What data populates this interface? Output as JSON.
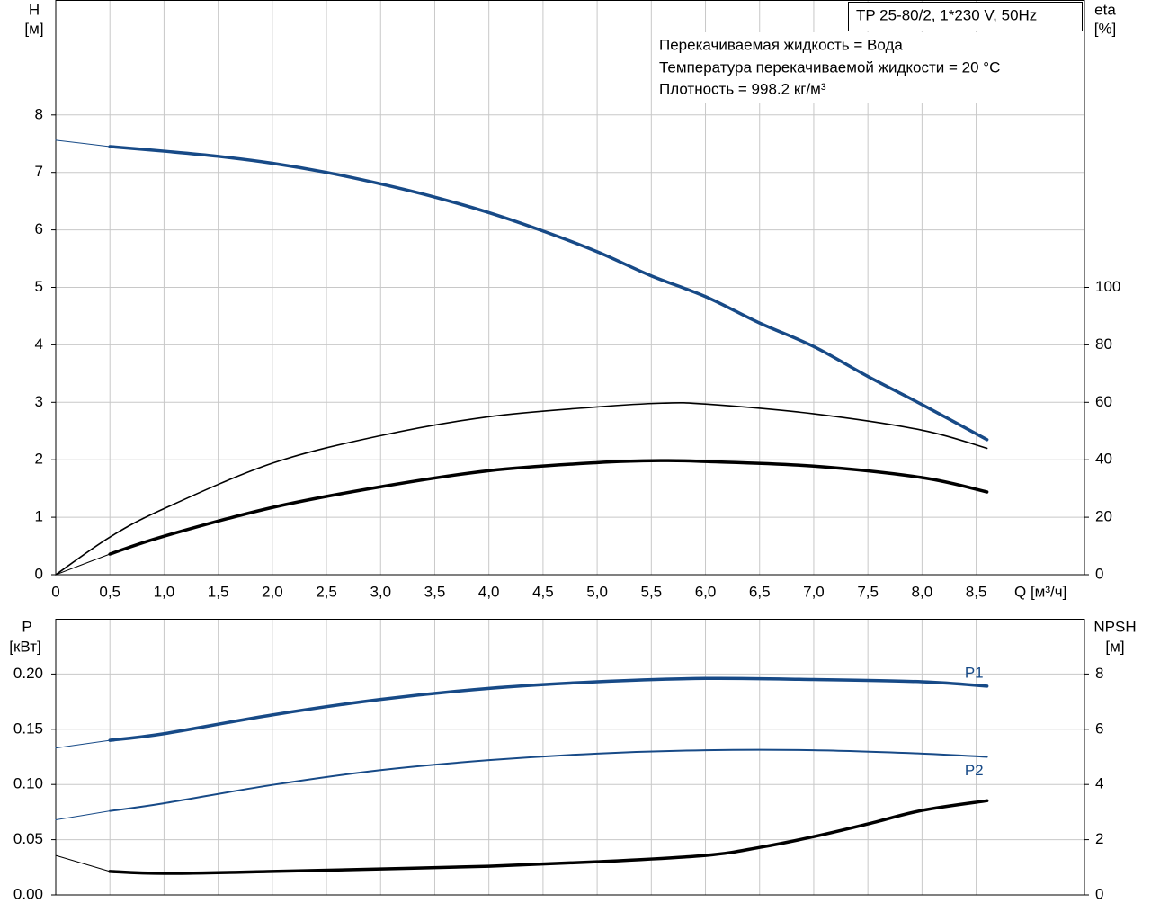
{
  "chart_data": [
    {
      "type": "line",
      "title": "TP 25-80/2, 1*230 V, 50Hz",
      "annotations": [
        "Перекачиваемая жидкость = Вода",
        "Температура перекачиваемой жидкости = 20 °C",
        "Плотность = 998.2 кг/м³"
      ],
      "x_label": "Q [м³/ч]",
      "y_label": [
        "H",
        "[м]"
      ],
      "y2_label": [
        "eta",
        "[%]"
      ],
      "xlim": [
        0,
        9.5
      ],
      "xticks": [
        0,
        {
          "value": 0.5,
          "label": "0,5"
        },
        {
          "value": 1,
          "label": "1,0"
        },
        {
          "value": 1.5,
          "label": "1,5"
        },
        {
          "value": 2,
          "label": "2,0"
        },
        {
          "value": 2.5,
          "label": "2,5"
        },
        {
          "value": 3,
          "label": "3,0"
        },
        {
          "value": 3.5,
          "label": "3,5"
        },
        {
          "value": 4,
          "label": "4,0"
        },
        {
          "value": 4.5,
          "label": "4,5"
        },
        {
          "value": 5,
          "label": "5,0"
        },
        {
          "value": 5.5,
          "label": "5,5"
        },
        {
          "value": 6,
          "label": "6,0"
        },
        {
          "value": 6.5,
          "label": "6,5"
        },
        {
          "value": 7,
          "label": "7,0"
        },
        {
          "value": 7.5,
          "label": "7,5"
        },
        {
          "value": 8,
          "label": "8,0"
        },
        {
          "value": 8.5,
          "label": "8,5"
        }
      ],
      "ylim": [
        0,
        10
      ],
      "yticks": [
        0,
        1,
        2,
        3,
        4,
        5,
        6,
        7,
        8
      ],
      "y2lim": [
        0,
        200
      ],
      "y2ticks": [
        0,
        20,
        40,
        60,
        80,
        100
      ],
      "grid": true,
      "series": [
        {
          "color": "#174a87",
          "width": 1,
          "x": [
            0,
            0.5
          ],
          "values": [
            7.56,
            7.45
          ]
        },
        {
          "color": "#174a87",
          "width": 3.5,
          "x": [
            0.5,
            1,
            1.5,
            2,
            2.5,
            3,
            3.5,
            4,
            4.5,
            5,
            5.5,
            6,
            6.5,
            7,
            7.5,
            8,
            8.6
          ],
          "values": [
            7.45,
            7.37,
            7.28,
            7.16,
            7.0,
            6.8,
            6.57,
            6.3,
            5.98,
            5.62,
            5.2,
            4.84,
            4.38,
            3.97,
            3.45,
            2.96,
            2.35
          ]
        },
        {
          "color": "#000000",
          "width": 1.6,
          "axis": "y2",
          "x": [
            0,
            0.5,
            1,
            2,
            3,
            4,
            5,
            5.6,
            6,
            7,
            8,
            8.6
          ],
          "values": [
            0,
            13.1,
            23,
            38.8,
            48.4,
            55,
            58.4,
            59.7,
            59.4,
            56,
            50.3,
            44
          ]
        },
        {
          "color": "#000000",
          "width": 1,
          "axis": "y2",
          "x": [
            0,
            0.5
          ],
          "values": [
            0,
            7.2
          ]
        },
        {
          "color": "#000000",
          "width": 3.5,
          "axis": "y2",
          "x": [
            0.5,
            1,
            2,
            3,
            4,
            5,
            5.6,
            6,
            7,
            8,
            8.6
          ],
          "values": [
            7.2,
            13.4,
            23.4,
            30.6,
            36.2,
            39,
            39.7,
            39.4,
            37.8,
            33.8,
            28.8
          ]
        }
      ]
    },
    {
      "type": "line",
      "y_label": [
        "P",
        "[кВт]"
      ],
      "y2_label": [
        "NPSH",
        "[м]"
      ],
      "xlim": [
        0,
        9.5
      ],
      "ylim": [
        0,
        0.25
      ],
      "yticks": [
        {
          "value": 0,
          "label": "0.00"
        },
        {
          "value": 0.05,
          "label": "0.05"
        },
        {
          "value": 0.1,
          "label": "0.10"
        },
        {
          "value": 0.15,
          "label": "0.15"
        },
        {
          "value": 0.2,
          "label": "0.20"
        }
      ],
      "y2lim": [
        0,
        10
      ],
      "y2ticks": [
        0,
        2,
        4,
        6,
        8
      ],
      "grid": true,
      "series": [
        {
          "color": "#174a87",
          "width": 1,
          "x": [
            0,
            0.5
          ],
          "values": [
            0.133,
            0.14
          ]
        },
        {
          "name": "P1",
          "label_position": "above",
          "color": "#174a87",
          "width": 3.5,
          "x": [
            0.5,
            1,
            2,
            3,
            4,
            5,
            6,
            7,
            8,
            8.6
          ],
          "values": [
            0.14,
            0.146,
            0.163,
            0.177,
            0.187,
            0.193,
            0.196,
            0.195,
            0.193,
            0.189
          ]
        },
        {
          "color": "#174a87",
          "width": 1,
          "x": [
            0,
            0.5
          ],
          "values": [
            0.068,
            0.076
          ]
        },
        {
          "name": "P2",
          "label_position": "below",
          "color": "#174a87",
          "width": 2,
          "x": [
            0.5,
            1,
            2,
            3,
            4,
            5,
            6,
            7,
            8,
            8.6
          ],
          "values": [
            0.076,
            0.083,
            0.0996,
            0.113,
            0.122,
            0.128,
            0.131,
            0.131,
            0.128,
            0.125
          ]
        },
        {
          "color": "#000000",
          "width": 1,
          "axis": "y2",
          "x": [
            0,
            0.5
          ],
          "values": [
            1.43,
            0.85
          ]
        },
        {
          "color": "#000000",
          "width": 3.5,
          "axis": "y2",
          "x": [
            0.5,
            1,
            2,
            3,
            4,
            5,
            6,
            6.5,
            7,
            7.5,
            8,
            8.6
          ],
          "values": [
            0.85,
            0.78,
            0.85,
            0.94,
            1.04,
            1.2,
            1.43,
            1.72,
            2.11,
            2.57,
            3.06,
            3.41
          ]
        }
      ]
    }
  ]
}
